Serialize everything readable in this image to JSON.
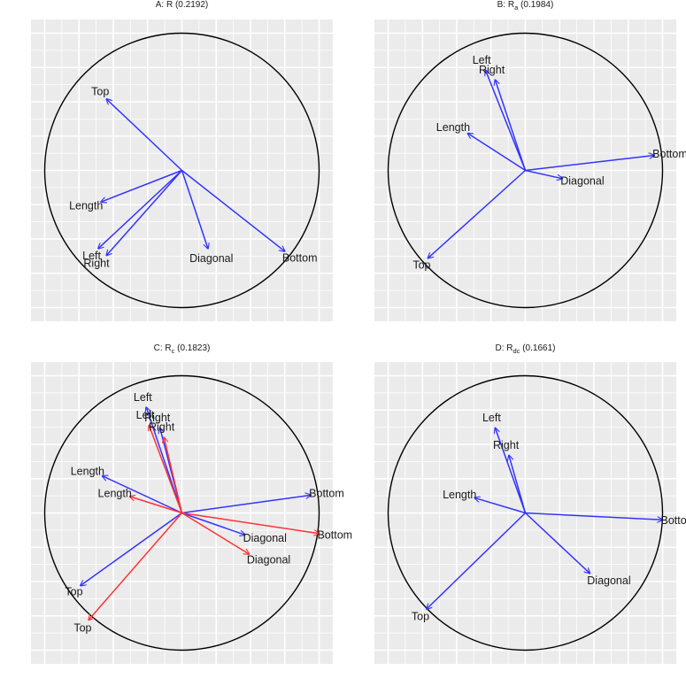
{
  "chart_data": [
    {
      "type": "biplot",
      "title_main": "A: R",
      "title_sub": "",
      "title_value": "(0.2192)",
      "xlim": [
        -1.1,
        1.1
      ],
      "ylim": [
        -1.1,
        1.1
      ],
      "grid": true,
      "circle": {
        "radius": 1
      },
      "series": [
        {
          "color": "#3333ff",
          "vectors": [
            {
              "name": "Top",
              "x": -0.55,
              "y": 0.52
            },
            {
              "name": "Length",
              "x": -0.59,
              "y": -0.23
            },
            {
              "name": "Left",
              "x": -0.61,
              "y": -0.57
            },
            {
              "name": "Right",
              "x": -0.55,
              "y": -0.62
            },
            {
              "name": "Diagonal",
              "x": 0.19,
              "y": -0.57
            },
            {
              "name": "Bottom",
              "x": 0.75,
              "y": -0.59
            }
          ]
        }
      ]
    },
    {
      "type": "biplot",
      "title_main": "B: R",
      "title_sub": "a",
      "title_value": "(0.1984)",
      "xlim": [
        -1.1,
        1.1
      ],
      "ylim": [
        -1.1,
        1.1
      ],
      "grid": true,
      "circle": {
        "radius": 1
      },
      "series": [
        {
          "color": "#3333ff",
          "vectors": [
            {
              "name": "Left",
              "x": -0.29,
              "y": 0.73
            },
            {
              "name": "Right",
              "x": -0.22,
              "y": 0.66
            },
            {
              "name": "Length",
              "x": -0.42,
              "y": 0.27
            },
            {
              "name": "Bottom",
              "x": 0.94,
              "y": 0.11
            },
            {
              "name": "Diagonal",
              "x": 0.27,
              "y": -0.06
            },
            {
              "name": "Top",
              "x": -0.71,
              "y": -0.64
            }
          ]
        }
      ]
    },
    {
      "type": "biplot",
      "title_main": "C: R",
      "title_sub": "c",
      "title_value": "(0.1823)",
      "xlim": [
        -1.1,
        1.1
      ],
      "ylim": [
        -1.1,
        1.1
      ],
      "grid": true,
      "circle": {
        "radius": 1
      },
      "series": [
        {
          "color": "#3333ff",
          "vectors": [
            {
              "name": "Left",
              "x": -0.26,
              "y": 0.77
            },
            {
              "name": "Right",
              "x": -0.16,
              "y": 0.62
            },
            {
              "name": "Length",
              "x": -0.58,
              "y": 0.27
            },
            {
              "name": "Bottom",
              "x": 0.94,
              "y": 0.13
            },
            {
              "name": "Diagonal",
              "x": 0.46,
              "y": -0.16
            },
            {
              "name": "Top",
              "x": -0.74,
              "y": -0.53
            }
          ]
        },
        {
          "color": "#ff3333",
          "vectors": [
            {
              "name": "Left",
              "x": -0.24,
              "y": 0.64
            },
            {
              "name": "Right",
              "x": -0.13,
              "y": 0.55
            },
            {
              "name": "Length",
              "x": -0.38,
              "y": 0.12
            },
            {
              "name": "Bottom",
              "x": 1.0,
              "y": -0.15
            },
            {
              "name": "Diagonal",
              "x": 0.49,
              "y": -0.3
            },
            {
              "name": "Top",
              "x": -0.68,
              "y": -0.78
            }
          ]
        }
      ]
    },
    {
      "type": "biplot",
      "title_main": "D: R",
      "title_sub": "dc",
      "title_value": "(0.1661)",
      "xlim": [
        -1.1,
        1.1
      ],
      "ylim": [
        -1.1,
        1.1
      ],
      "grid": true,
      "circle": {
        "radius": 1
      },
      "series": [
        {
          "color": "#3333ff",
          "vectors": [
            {
              "name": "Left",
              "x": -0.22,
              "y": 0.62
            },
            {
              "name": "Right",
              "x": -0.12,
              "y": 0.42
            },
            {
              "name": "Length",
              "x": -0.37,
              "y": 0.11
            },
            {
              "name": "Bottom",
              "x": 1.0,
              "y": -0.05
            },
            {
              "name": "Diagonal",
              "x": 0.47,
              "y": -0.44
            },
            {
              "name": "Top",
              "x": -0.72,
              "y": -0.7
            }
          ]
        }
      ]
    }
  ]
}
